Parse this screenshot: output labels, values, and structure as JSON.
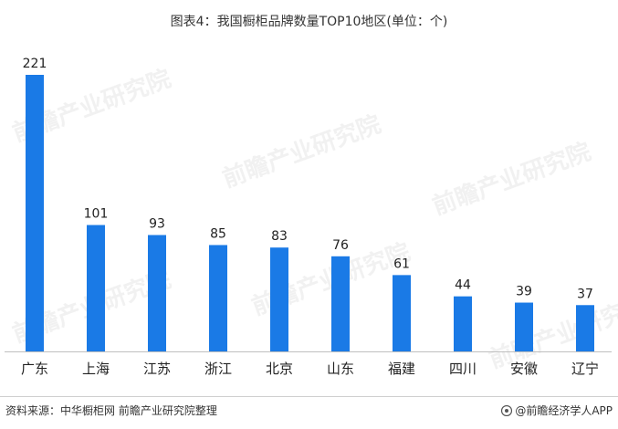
{
  "chart_data": {
    "type": "bar",
    "title": "图表4：我国橱柜品牌数量TOP10地区(单位：个)",
    "categories": [
      "广东",
      "上海",
      "江苏",
      "浙江",
      "北京",
      "山东",
      "福建",
      "四川",
      "安徽",
      "辽宁"
    ],
    "values": [
      221,
      101,
      93,
      85,
      83,
      76,
      61,
      44,
      39,
      37
    ],
    "xlabel": "",
    "ylabel": "",
    "ylim": [
      0,
      221
    ],
    "grid": false,
    "legend": "none",
    "bar_color": "#1a7ae6",
    "axis_color": "#bfbfbf"
  },
  "footer": {
    "source": "资料来源：中华橱柜网 前瞻产业研究院整理",
    "brand": "@前瞻经济学人APP"
  },
  "watermark": "前瞻产业研究院"
}
